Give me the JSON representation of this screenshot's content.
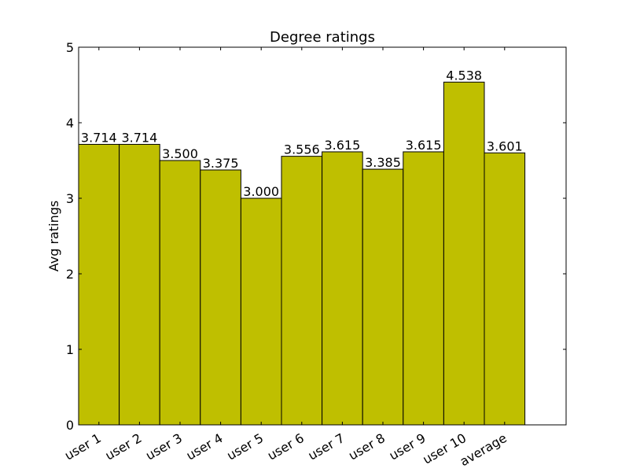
{
  "chart_data": {
    "type": "bar",
    "title": "Degree ratings",
    "xlabel": "",
    "ylabel": "Avg ratings",
    "categories": [
      "user 1",
      "user 2",
      "user 3",
      "user 4",
      "user 5",
      "user 6",
      "user 7",
      "user 8",
      "user 9",
      "user 10",
      "average"
    ],
    "values": [
      3.714,
      3.714,
      3.5,
      3.375,
      3.0,
      3.556,
      3.615,
      3.385,
      3.615,
      4.538,
      3.601
    ],
    "value_labels": [
      "3.714",
      "3.714",
      "3.500",
      "3.375",
      "3.000",
      "3.556",
      "3.615",
      "3.385",
      "3.615",
      "4.538",
      "3.601"
    ],
    "ylim": [
      0,
      5
    ],
    "yticks": [
      "0",
      "1",
      "2",
      "3",
      "4",
      "5"
    ],
    "bar_color": "#bfbf00",
    "edge_color": "#000000",
    "grid": false,
    "legend": null
  }
}
